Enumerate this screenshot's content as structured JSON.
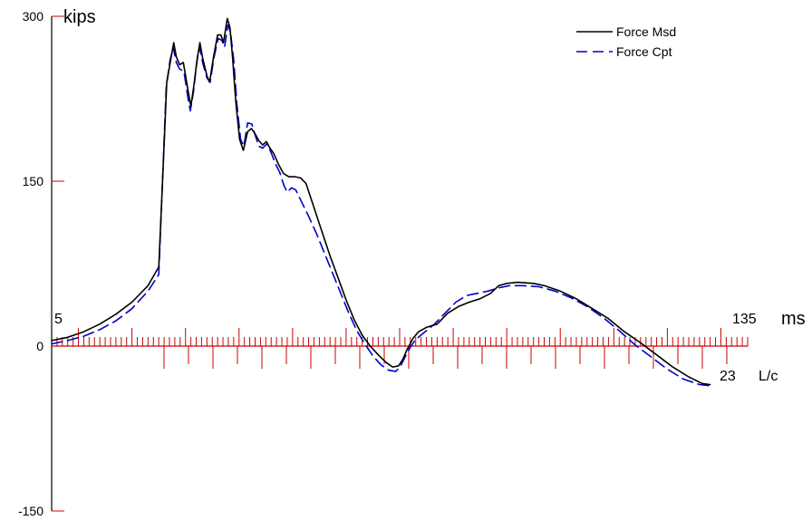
{
  "chart_data": {
    "type": "line",
    "title": "",
    "y_unit_label": "kips",
    "y_ticks": [
      300,
      150,
      0,
      -150
    ],
    "ylim": [
      -150,
      300
    ],
    "x_unit_label": "ms",
    "x_start_label": "5",
    "x_end_label": "135",
    "lc_unit_label": "L/c",
    "lc_end_label": "23",
    "grid": false,
    "legend_position": "top-right",
    "colors": {
      "axis": "#000000",
      "ruler": "#cc0000",
      "force_msd": "#000000",
      "force_cpt": "#0000cc"
    },
    "series": [
      {
        "name": "Force Msd",
        "style": "solid",
        "points": [
          [
            5,
            5
          ],
          [
            8,
            8
          ],
          [
            11,
            13
          ],
          [
            14,
            20
          ],
          [
            17,
            29
          ],
          [
            20,
            40
          ],
          [
            23,
            55
          ],
          [
            25,
            72
          ],
          [
            25.8,
            160
          ],
          [
            26.5,
            240
          ],
          [
            27.3,
            262
          ],
          [
            27.8,
            276
          ],
          [
            28.3,
            263
          ],
          [
            28.9,
            256
          ],
          [
            29.6,
            258
          ],
          [
            30.5,
            232
          ],
          [
            31,
            218
          ],
          [
            31.6,
            238
          ],
          [
            32.2,
            262
          ],
          [
            32.7,
            276
          ],
          [
            33.2,
            262
          ],
          [
            34,
            246
          ],
          [
            34.5,
            240
          ],
          [
            35.2,
            262
          ],
          [
            36,
            283
          ],
          [
            36.6,
            283
          ],
          [
            37.1,
            276
          ],
          [
            37.8,
            298
          ],
          [
            38.3,
            290
          ],
          [
            38.8,
            262
          ],
          [
            39.4,
            222
          ],
          [
            40.1,
            188
          ],
          [
            40.8,
            178
          ],
          [
            41.6,
            195
          ],
          [
            42.3,
            198
          ],
          [
            43,
            193
          ],
          [
            43.7,
            187
          ],
          [
            44.4,
            183
          ],
          [
            45.1,
            186
          ],
          [
            45.8,
            180
          ],
          [
            46.5,
            175
          ],
          [
            47.4,
            165
          ],
          [
            48.3,
            157
          ],
          [
            49.3,
            154
          ],
          [
            50.5,
            154
          ],
          [
            51.5,
            153
          ],
          [
            52.5,
            148
          ],
          [
            54,
            126
          ],
          [
            55.5,
            104
          ],
          [
            57,
            82
          ],
          [
            58.5,
            62
          ],
          [
            60,
            42
          ],
          [
            61.5,
            24
          ],
          [
            63,
            10
          ],
          [
            64.5,
            0
          ],
          [
            66,
            -8
          ],
          [
            67.5,
            -15
          ],
          [
            68.7,
            -19
          ],
          [
            69.8,
            -18
          ],
          [
            70.6,
            -12
          ],
          [
            71.4,
            -3
          ],
          [
            72.5,
            7
          ],
          [
            73.5,
            13
          ],
          [
            75,
            17
          ],
          [
            77,
            20
          ],
          [
            79,
            30
          ],
          [
            81,
            36
          ],
          [
            83,
            40
          ],
          [
            85,
            43
          ],
          [
            87,
            48
          ],
          [
            88.5,
            55
          ],
          [
            90,
            57
          ],
          [
            92,
            58
          ],
          [
            95,
            57
          ],
          [
            97,
            55
          ],
          [
            100,
            50
          ],
          [
            103,
            43
          ],
          [
            106,
            34
          ],
          [
            109,
            25
          ],
          [
            112,
            13
          ],
          [
            115,
            3
          ],
          [
            118,
            -8
          ],
          [
            121,
            -19
          ],
          [
            124,
            -28
          ],
          [
            126.5,
            -34
          ],
          [
            128,
            -35
          ]
        ]
      },
      {
        "name": "Force Cpt",
        "style": "dashed",
        "points": [
          [
            5,
            2
          ],
          [
            8,
            5
          ],
          [
            11,
            9
          ],
          [
            14,
            15
          ],
          [
            17,
            23
          ],
          [
            20,
            34
          ],
          [
            23,
            50
          ],
          [
            25,
            65
          ],
          [
            25.7,
            150
          ],
          [
            26.4,
            235
          ],
          [
            27.1,
            260
          ],
          [
            27.7,
            272
          ],
          [
            28.3,
            258
          ],
          [
            28.9,
            252
          ],
          [
            29.7,
            250
          ],
          [
            30.5,
            225
          ],
          [
            30.9,
            214
          ],
          [
            31.5,
            232
          ],
          [
            32.1,
            258
          ],
          [
            32.6,
            272
          ],
          [
            33.2,
            258
          ],
          [
            34,
            244
          ],
          [
            34.6,
            240
          ],
          [
            35.3,
            262
          ],
          [
            36.1,
            280
          ],
          [
            36.8,
            278
          ],
          [
            37.3,
            272
          ],
          [
            37.9,
            292
          ],
          [
            38.4,
            286
          ],
          [
            39,
            260
          ],
          [
            39.6,
            220
          ],
          [
            40.3,
            188
          ],
          [
            40.9,
            182
          ],
          [
            41.6,
            203
          ],
          [
            42.4,
            202
          ],
          [
            43,
            192
          ],
          [
            43.7,
            182
          ],
          [
            44.4,
            180
          ],
          [
            45.2,
            184
          ],
          [
            46,
            176
          ],
          [
            46.8,
            166
          ],
          [
            47.6,
            158
          ],
          [
            48.4,
            146
          ],
          [
            49,
            140
          ],
          [
            49.8,
            144
          ],
          [
            50.6,
            142
          ],
          [
            51.8,
            130
          ],
          [
            53,
            118
          ],
          [
            54.5,
            102
          ],
          [
            56,
            84
          ],
          [
            57.5,
            66
          ],
          [
            59,
            48
          ],
          [
            60.5,
            30
          ],
          [
            62,
            14
          ],
          [
            63.5,
            2
          ],
          [
            65,
            -9
          ],
          [
            66.5,
            -17
          ],
          [
            68,
            -22
          ],
          [
            69.3,
            -23
          ],
          [
            70.2,
            -18
          ],
          [
            71,
            -10
          ],
          [
            72,
            -1
          ],
          [
            73,
            6
          ],
          [
            74.5,
            12
          ],
          [
            76.5,
            20
          ],
          [
            78.5,
            30
          ],
          [
            80.5,
            40
          ],
          [
            82.5,
            46
          ],
          [
            84.5,
            48
          ],
          [
            86.5,
            50
          ],
          [
            88.5,
            53
          ],
          [
            90.5,
            55
          ],
          [
            93,
            55
          ],
          [
            96,
            54
          ],
          [
            99,
            50
          ],
          [
            102,
            44
          ],
          [
            105,
            36
          ],
          [
            108,
            26
          ],
          [
            111,
            14
          ],
          [
            114,
            1
          ],
          [
            117,
            -10
          ],
          [
            120,
            -21
          ],
          [
            123,
            -30
          ],
          [
            126,
            -35
          ],
          [
            128,
            -36
          ]
        ]
      }
    ]
  }
}
